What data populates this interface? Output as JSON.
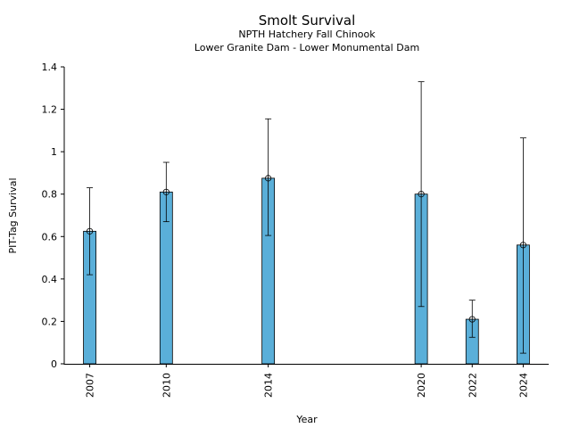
{
  "chart_data": {
    "type": "bar",
    "title": "Smolt Survival",
    "subtitle_lines": [
      "NPTH Hatchery Fall Chinook",
      "Lower Granite Dam - Lower Monumental Dam"
    ],
    "xlabel": "Year",
    "ylabel": "PIT-Tag Survival",
    "ylim": [
      0,
      1.4
    ],
    "xlim": [
      2006.0,
      2025.0
    ],
    "y_ticks": [
      0,
      0.2,
      0.4,
      0.6,
      0.8,
      1,
      1.2,
      1.4
    ],
    "y_tick_labels": [
      "0",
      "0.2",
      "0.4",
      "0.6",
      "0.8",
      "1",
      "1.2",
      "1.4"
    ],
    "grid": false,
    "bar_color": "#5aafd9",
    "series": [
      {
        "points": [
          {
            "x": 2007,
            "label": "2007",
            "value": 0.625,
            "err_low": 0.42,
            "err_high": 0.83
          },
          {
            "x": 2010,
            "label": "2010",
            "value": 0.81,
            "err_low": 0.67,
            "err_high": 0.95
          },
          {
            "x": 2014,
            "label": "2014",
            "value": 0.875,
            "err_low": 0.605,
            "err_high": 1.155
          },
          {
            "x": 2020,
            "label": "2020",
            "value": 0.8,
            "err_low": 0.27,
            "err_high": 1.33
          },
          {
            "x": 2022,
            "label": "2022",
            "value": 0.21,
            "err_low": 0.125,
            "err_high": 0.3
          },
          {
            "x": 2024,
            "label": "2024",
            "value": 0.56,
            "err_low": 0.05,
            "err_high": 1.065
          }
        ]
      }
    ]
  }
}
